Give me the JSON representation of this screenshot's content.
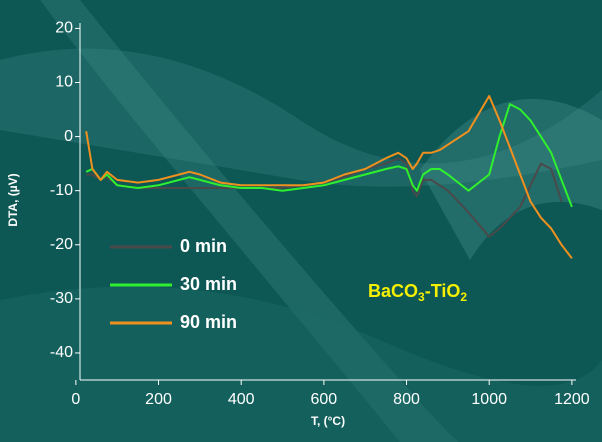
{
  "chart_data": {
    "type": "line",
    "x_label": "T, (°C)",
    "y_label": "DTA, (µV)",
    "annotation": [
      "BaCO",
      "3",
      "-TiO",
      "2"
    ],
    "x": [
      25,
      40,
      60,
      75,
      100,
      150,
      200,
      250,
      275,
      300,
      350,
      400,
      450,
      500,
      550,
      600,
      650,
      700,
      750,
      780,
      800,
      815,
      825,
      840,
      860,
      880,
      900,
      950,
      1000,
      1025,
      1050,
      1075,
      1100,
      1125,
      1150,
      1175,
      1200
    ],
    "series": [
      {
        "name": "0 min",
        "color": "#4a4a4a",
        "values": [
          -7,
          -7,
          -8,
          -7.5,
          -9,
          -9.5,
          -9.5,
          -9.5,
          -9.5,
          -9.5,
          -9.5,
          -9.5,
          -9.5,
          -9.5,
          -9,
          -8.5,
          -7.5,
          -6,
          -5,
          -4,
          -5,
          -10,
          -11,
          -8,
          -8,
          -9,
          -10,
          -14,
          -18.5,
          -17,
          -15,
          -13,
          -9,
          -5,
          -6,
          -12,
          null
        ]
      },
      {
        "name": "30 min",
        "color": "#2ef02e",
        "values": [
          -6.5,
          -6,
          -8,
          -7,
          -9,
          -9.5,
          -9,
          -8,
          -7.5,
          -8,
          -9,
          -9.5,
          -9.5,
          -10,
          -9.5,
          -9,
          -8,
          -7,
          -6,
          -5.5,
          -6,
          -9,
          -10,
          -7,
          -6,
          -6,
          -7,
          -10,
          -7,
          0,
          6,
          5,
          3,
          0,
          -3,
          -8,
          -13
        ]
      },
      {
        "name": "90 min",
        "color": "#f0901e",
        "values": [
          1,
          -6,
          -8,
          -6.5,
          -8,
          -8.5,
          -8,
          -7,
          -6.5,
          -7,
          -8.5,
          -9,
          -9,
          -9,
          -9,
          -8.5,
          -7,
          -6,
          -4,
          -3,
          -4,
          -6,
          -5,
          -3,
          -3,
          -2.5,
          -1.5,
          1,
          7.5,
          3,
          -2,
          -7,
          -12,
          -15,
          -17,
          -20,
          -22.5
        ]
      }
    ],
    "xlim": [
      10,
      1210
    ],
    "ylim": [
      -45,
      21
    ],
    "xticks": [
      0,
      200,
      400,
      600,
      800,
      1000,
      1200
    ],
    "yticks": [
      -40,
      -30,
      -20,
      -10,
      0,
      10,
      20
    ]
  }
}
